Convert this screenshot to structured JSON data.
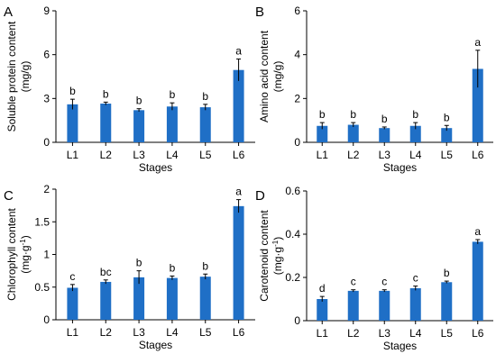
{
  "colors": {
    "bar": "#1f6fc6",
    "axis": "#000000",
    "errorbar": "#000000"
  },
  "chart_data": [
    {
      "type": "bar",
      "panel": "A",
      "title": "",
      "categories": [
        "L1",
        "L2",
        "L3",
        "L4",
        "L5",
        "L6"
      ],
      "values": [
        2.6,
        2.65,
        2.2,
        2.45,
        2.4,
        4.95
      ],
      "errors": [
        0.35,
        0.1,
        0.1,
        0.25,
        0.2,
        0.75
      ],
      "labels": [
        "b",
        "b",
        "b",
        "b",
        "b",
        "a"
      ],
      "xlabel": "Stages",
      "ylabel": "Soluble protein content",
      "yunit": "(mg/g)",
      "yunit_sup": "",
      "ylim": [
        0,
        9
      ],
      "yticks": [
        0,
        3,
        6,
        9
      ],
      "ytick_labels": [
        "0",
        "3",
        "6",
        "9"
      ]
    },
    {
      "type": "bar",
      "panel": "B",
      "title": "",
      "categories": [
        "L1",
        "L2",
        "L3",
        "L4",
        "L5",
        "L6"
      ],
      "values": [
        0.75,
        0.8,
        0.65,
        0.75,
        0.65,
        3.35
      ],
      "errors": [
        0.15,
        0.1,
        0.05,
        0.15,
        0.12,
        0.85
      ],
      "labels": [
        "b",
        "b",
        "b",
        "b",
        "b",
        "a"
      ],
      "xlabel": "Stages",
      "ylabel": "Amino acid content",
      "yunit": "(mg/g)",
      "yunit_sup": "",
      "ylim": [
        0,
        6
      ],
      "yticks": [
        0,
        2,
        4,
        6
      ],
      "ytick_labels": [
        "0",
        "2",
        "4",
        "6"
      ]
    },
    {
      "type": "bar",
      "panel": "C",
      "title": "",
      "categories": [
        "L1",
        "L2",
        "L3",
        "L4",
        "L5",
        "L6"
      ],
      "values": [
        0.49,
        0.58,
        0.65,
        0.64,
        0.66,
        1.74
      ],
      "errors": [
        0.05,
        0.03,
        0.1,
        0.03,
        0.04,
        0.1
      ],
      "labels": [
        "c",
        "bc",
        "b",
        "b",
        "b",
        "a"
      ],
      "xlabel": "Stages",
      "ylabel": "Chlorophyll content",
      "yunit": "(mg·g",
      "yunit_sup": "-1",
      "yunit_end": ")",
      "ylim": [
        0,
        2
      ],
      "yticks": [
        0,
        0.5,
        1,
        1.5,
        2
      ],
      "ytick_labels": [
        "0",
        "0.5",
        "1",
        "1.5",
        "2"
      ]
    },
    {
      "type": "bar",
      "panel": "D",
      "title": "",
      "categories": [
        "L1",
        "L2",
        "L3",
        "L4",
        "L5",
        "L6"
      ],
      "values": [
        0.1,
        0.138,
        0.138,
        0.15,
        0.178,
        0.365
      ],
      "errors": [
        0.012,
        0.005,
        0.005,
        0.01,
        0.005,
        0.01
      ],
      "labels": [
        "d",
        "c",
        "c",
        "c",
        "b",
        "a"
      ],
      "xlabel": "Stages",
      "ylabel": "Carotenoid content",
      "yunit": "(mg·g",
      "yunit_sup": "-1",
      "yunit_end": ")",
      "ylim": [
        0,
        0.6
      ],
      "yticks": [
        0,
        0.2,
        0.4,
        0.6
      ],
      "ytick_labels": [
        "0",
        "0.2",
        "0.4",
        "0.6"
      ]
    }
  ]
}
